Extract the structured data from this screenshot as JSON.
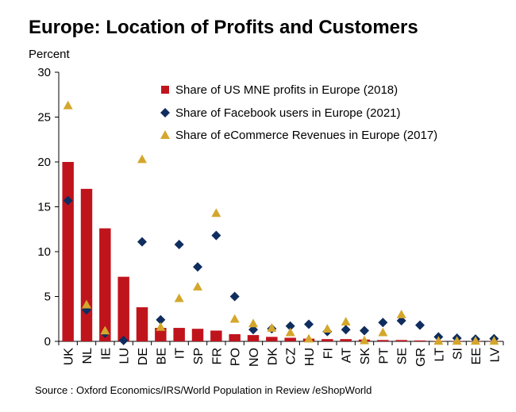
{
  "title": "Europe: Location of Profits and Customers",
  "y_unit": "Percent",
  "source": "Source : Oxford Economics/IRS/World Population in Review /eShopWorld",
  "colors": {
    "bar": "#c0141c",
    "diamond": "#0f2d5e",
    "triangle": "#d4a72c"
  },
  "chart_data": {
    "type": "bar",
    "title": "Europe: Location of Profits and Customers",
    "ylabel": "Percent",
    "xlabel": "",
    "ylim": [
      0,
      30
    ],
    "yticks": [
      0,
      5,
      10,
      15,
      20,
      25,
      30
    ],
    "categories": [
      "UK",
      "NL",
      "IE",
      "LU",
      "DE",
      "BE",
      "IT",
      "SP",
      "FR",
      "PO",
      "NO",
      "DK",
      "CZ",
      "HU",
      "FI",
      "AT",
      "SK",
      "PT",
      "SE",
      "GR",
      "LT",
      "SI",
      "EE",
      "LV"
    ],
    "series": [
      {
        "name": "Share of US MNE profits in Europe (2018)",
        "marker": "bar",
        "values": [
          20.0,
          17.0,
          12.6,
          7.2,
          3.8,
          1.5,
          1.5,
          1.4,
          1.2,
          0.8,
          0.7,
          0.5,
          0.4,
          0.3,
          0.25,
          0.25,
          0.2,
          0.15,
          0.15,
          0.1,
          0.05,
          0.05,
          0.05,
          0.05
        ]
      },
      {
        "name": "Share of Facebook users in Europe (2021)",
        "marker": "diamond",
        "values": [
          15.7,
          3.5,
          0.9,
          0.1,
          11.1,
          2.4,
          10.8,
          8.3,
          11.8,
          5.0,
          1.3,
          1.4,
          1.7,
          1.9,
          1.1,
          1.3,
          1.2,
          2.1,
          2.3,
          1.8,
          0.5,
          0.35,
          0.25,
          0.3
        ]
      },
      {
        "name": "Share of eCommerce Revenues in Europe (2017)",
        "marker": "triangle",
        "values": [
          26.3,
          4.1,
          1.2,
          null,
          20.3,
          1.6,
          4.8,
          6.1,
          14.3,
          2.5,
          2.0,
          1.5,
          1.0,
          0.3,
          1.4,
          2.2,
          0.1,
          1.0,
          3.0,
          null,
          0.05,
          0.05,
          0.05,
          0.05
        ]
      }
    ],
    "legend_position": "top-right"
  }
}
